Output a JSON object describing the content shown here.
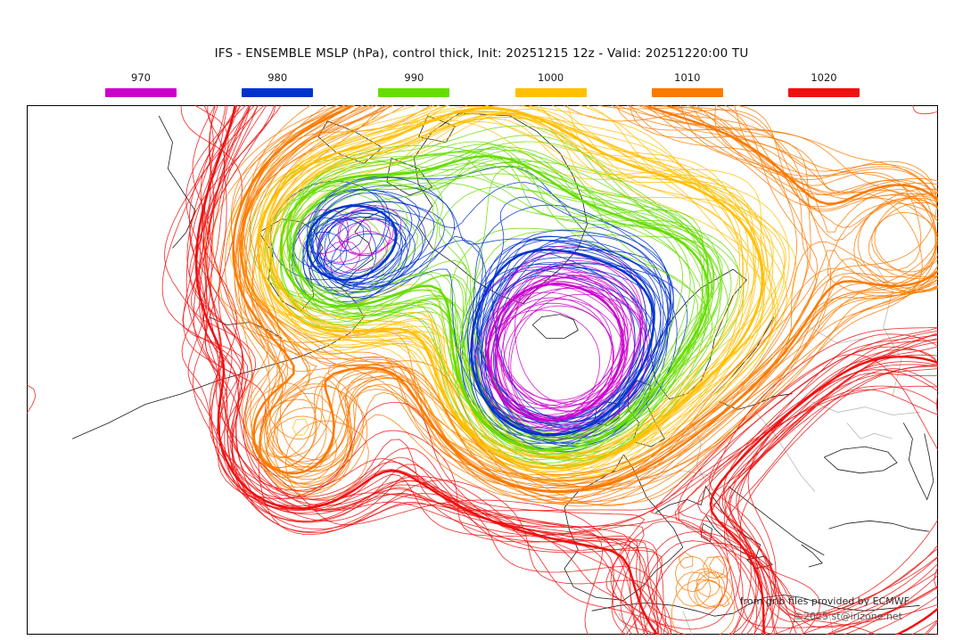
{
  "page": {
    "title": "IFS - ENSEMBLE MSLP (hPa), control thick, Init: 20251215 12z - Valid: 20251220:00 TU"
  },
  "legend": {
    "items": [
      {
        "label": "970",
        "color": "#CC00CC"
      },
      {
        "label": "980",
        "color": "#0033CC"
      },
      {
        "label": "990",
        "color": "#66DD00"
      },
      {
        "label": "1000",
        "color": "#FFC000"
      },
      {
        "label": "1010",
        "color": "#FA7A00"
      },
      {
        "label": "1020",
        "color": "#EE1111"
      }
    ]
  },
  "footer": {
    "credit": "from grib files provided by ECMWF",
    "copyright": "©2025 st@irizone.net"
  },
  "map": {
    "field": "mean sea level pressure (hPa)",
    "region": "North America - North Atlantic - Europe",
    "style": "ensemble spaghetti contours, control run thick",
    "frame_color": "#000000",
    "coast_color": "#1a1a1a",
    "border_color": "#b0b0b0",
    "base_pressure_hpa": 1017,
    "levels": [
      {
        "value": 1020,
        "color": "#EE1111"
      },
      {
        "value": 1010,
        "color": "#FA7A00"
      },
      {
        "value": 1000,
        "color": "#FFC000"
      },
      {
        "value": 990,
        "color": "#66DD00"
      },
      {
        "value": 980,
        "color": "#0033CC"
      },
      {
        "value": 970,
        "color": "#CC00CC"
      }
    ],
    "systems": [
      {
        "name": "deep-low-south-of-iceland",
        "type": "low",
        "u": 0.565,
        "v": 0.5,
        "amp": -58,
        "sigma": 0.068
      },
      {
        "name": "trough-scandinavia",
        "type": "low",
        "u": 0.7,
        "v": 0.36,
        "amp": -30,
        "sigma": 0.11
      },
      {
        "name": "low-hudson-bay",
        "type": "low",
        "u": 0.335,
        "v": 0.27,
        "amp": -40,
        "sigma": 0.07
      },
      {
        "name": "trough-baffin-greenland",
        "type": "low",
        "u": 0.5,
        "v": 0.16,
        "amp": -26,
        "sigma": 0.09
      },
      {
        "name": "closed-low-west-atlantic",
        "type": "low",
        "u": 0.285,
        "v": 0.635,
        "amp": -20,
        "sigma": 0.05
      },
      {
        "name": "low-central-mediterranean",
        "type": "low",
        "u": 0.745,
        "v": 0.9,
        "amp": -11,
        "sigma": 0.038
      },
      {
        "name": "trough-east-edge",
        "type": "low",
        "u": 0.965,
        "v": 0.25,
        "amp": -12,
        "sigma": 0.05
      },
      {
        "name": "ridge-alaska-northwest",
        "type": "high",
        "u": 0.07,
        "v": 0.13,
        "amp": 12,
        "sigma": 0.12
      },
      {
        "name": "subtropical-high-west-atlantic",
        "type": "high",
        "u": 0.13,
        "v": 0.82,
        "amp": 14,
        "sigma": 0.15
      },
      {
        "name": "high-southeast-europe",
        "type": "high",
        "u": 0.88,
        "v": 0.7,
        "amp": 13,
        "sigma": 0.11
      },
      {
        "name": "high-south-boundary",
        "type": "high",
        "u": 0.48,
        "v": 1.08,
        "amp": 10,
        "sigma": 0.15
      }
    ]
  }
}
